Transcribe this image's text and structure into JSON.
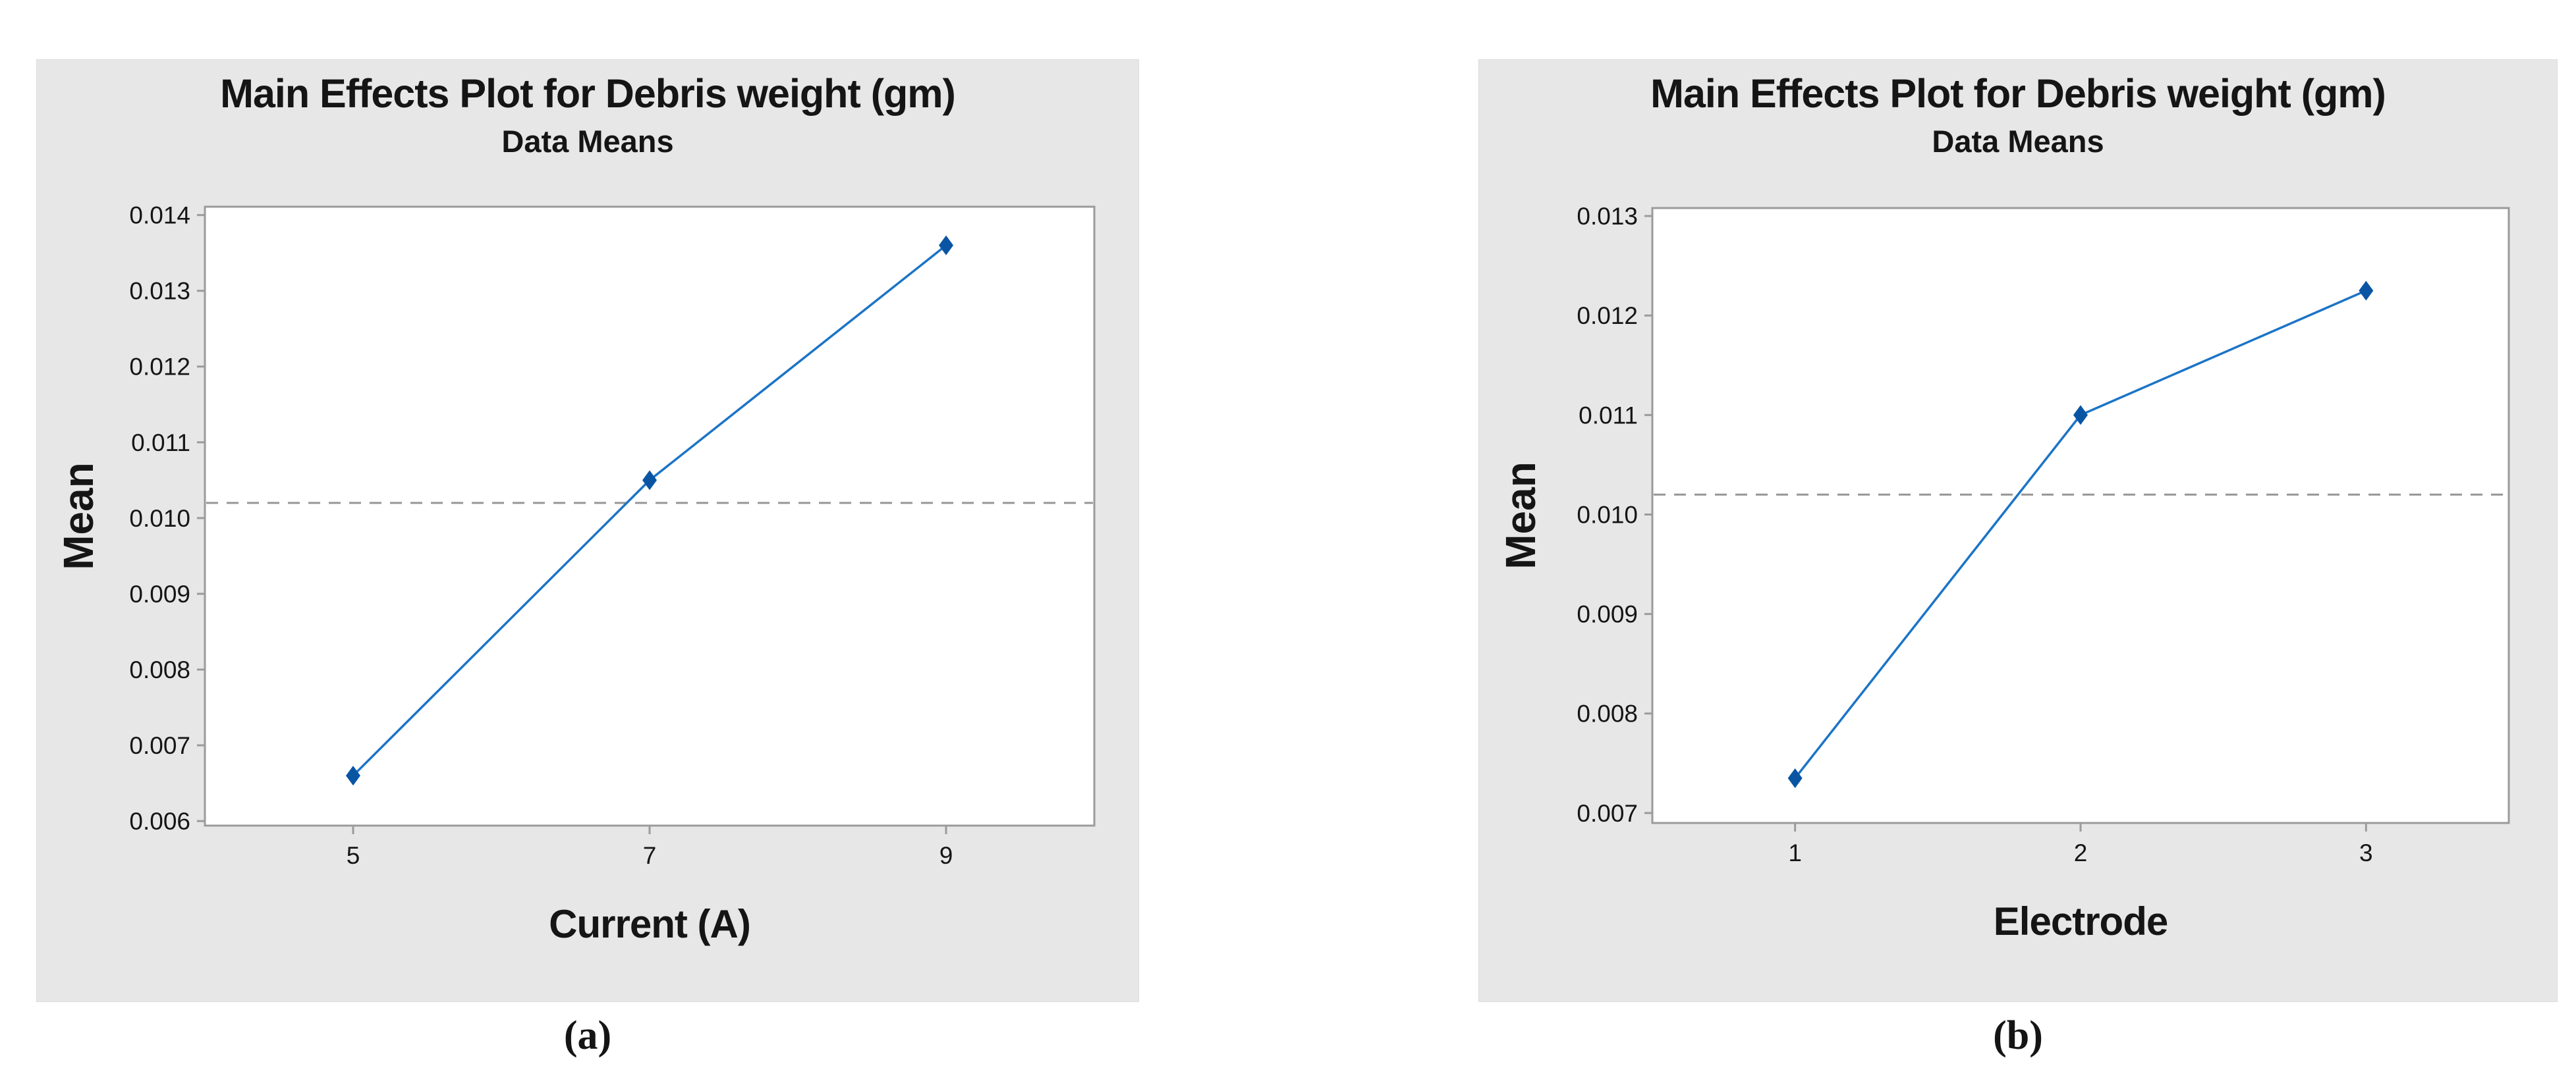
{
  "colors": {
    "page_bg": "#ffffff",
    "panel_bg": "#e7e7e7",
    "plot_bg": "#ffffff",
    "plot_border": "#9b9b9b",
    "line": "#1b74c6",
    "marker": "#0a55a3",
    "mean_line": "#969696",
    "text": "#151515"
  },
  "chart_data": [
    {
      "type": "line",
      "panel": "a",
      "title": "Main Effects Plot for Debris weight (gm)",
      "subtitle": "Data Means",
      "xlabel": "Current (A)",
      "ylabel": "Mean",
      "caption": "(a)",
      "categories": [
        "5",
        "7",
        "9"
      ],
      "values": [
        0.0066,
        0.0105,
        0.0136
      ],
      "grand_mean_line": 0.0102,
      "yticks": [
        0.006,
        0.007,
        0.008,
        0.009,
        0.01,
        0.011,
        0.012,
        0.013,
        0.014
      ],
      "ylim": [
        0.00594,
        0.01411
      ],
      "grid": false,
      "legend": "none",
      "marker": "diamond"
    },
    {
      "type": "line",
      "panel": "b",
      "title": "Main Effects Plot for Debris weight (gm)",
      "subtitle": "Data Means",
      "xlabel": "Electrode",
      "ylabel": "Mean",
      "caption": "(b)",
      "categories": [
        "1",
        "2",
        "3"
      ],
      "values": [
        0.00735,
        0.011,
        0.01225
      ],
      "grand_mean_line": 0.0102,
      "yticks": [
        0.007,
        0.008,
        0.009,
        0.01,
        0.011,
        0.012,
        0.013
      ],
      "ylim": [
        0.0069,
        0.01308
      ],
      "grid": false,
      "legend": "none",
      "marker": "diamond"
    }
  ]
}
